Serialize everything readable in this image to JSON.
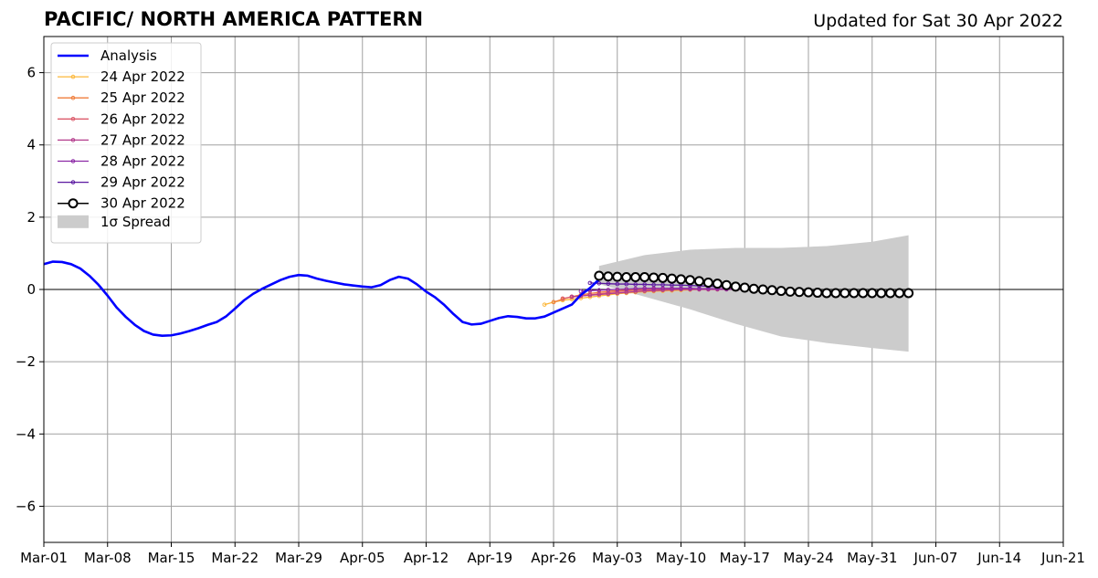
{
  "chart_data": {
    "type": "line",
    "title": "PACIFIC/ NORTH AMERICA PATTERN",
    "subtitle": "Updated for Sat 30 Apr 2022",
    "xlabel": "",
    "ylabel": "",
    "xlim": [
      "2022-03-01",
      "2022-06-21"
    ],
    "ylim": [
      -7,
      7
    ],
    "x_ticks": [
      "Mar-01",
      "Mar-08",
      "Mar-15",
      "Mar-22",
      "Mar-29",
      "Apr-05",
      "Apr-12",
      "Apr-19",
      "Apr-26",
      "May-03",
      "May-10",
      "May-17",
      "May-24",
      "May-31",
      "Jun-07",
      "Jun-14",
      "Jun-21"
    ],
    "y_ticks": [
      -6,
      -4,
      -2,
      0,
      2,
      4,
      6
    ],
    "grid": true,
    "legend_position": "upper-left",
    "colors": {
      "analysis": "#0000ff",
      "spread": "#cccccc",
      "forecast_30": "#000000"
    },
    "analysis": {
      "name": "Analysis",
      "start_date": "2022-03-01",
      "values": [
        0.7,
        0.77,
        0.76,
        0.7,
        0.58,
        0.38,
        0.13,
        -0.17,
        -0.5,
        -0.76,
        -0.98,
        -1.15,
        -1.25,
        -1.28,
        -1.27,
        -1.22,
        -1.15,
        -1.07,
        -0.98,
        -0.9,
        -0.75,
        -0.53,
        -0.3,
        -0.12,
        0.02,
        0.14,
        0.26,
        0.35,
        0.4,
        0.38,
        0.3,
        0.24,
        0.19,
        0.14,
        0.11,
        0.08,
        0.06,
        0.12,
        0.26,
        0.35,
        0.3,
        0.14,
        -0.06,
        -0.22,
        -0.43,
        -0.68,
        -0.9,
        -0.97,
        -0.95,
        -0.87,
        -0.79,
        -0.74,
        -0.76,
        -0.8,
        -0.8,
        -0.75,
        -0.64,
        -0.53,
        -0.42,
        -0.15,
        0.04,
        0.28
      ]
    },
    "forecasts": [
      {
        "name": "24 Apr 2022",
        "color": "#fcb73a",
        "start_date": "2022-04-25",
        "values": [
          -0.42,
          -0.35,
          -0.3,
          -0.27,
          -0.24,
          -0.21,
          -0.18,
          -0.15,
          -0.12,
          -0.1,
          -0.08,
          -0.06,
          -0.05,
          -0.04,
          -0.03,
          -0.02,
          -0.01,
          0.0,
          0.0,
          0.0
        ]
      },
      {
        "name": "25 Apr 2022",
        "color": "#f07e3c",
        "start_date": "2022-04-26",
        "values": [
          -0.35,
          -0.27,
          -0.2,
          -0.15,
          -0.11,
          -0.08,
          -0.05,
          -0.03,
          -0.02,
          -0.01,
          0.0,
          0.01,
          0.02,
          0.02,
          0.02,
          0.02,
          0.02,
          0.02,
          0.02,
          0.02
        ]
      },
      {
        "name": "26 Apr 2022",
        "color": "#dc5a6a",
        "start_date": "2022-04-27",
        "values": [
          -0.25,
          -0.21,
          -0.18,
          -0.15,
          -0.12,
          -0.09,
          -0.06,
          -0.04,
          -0.02,
          -0.01,
          0.0,
          0.01,
          0.01,
          0.02,
          0.02,
          0.02,
          0.02,
          0.02,
          0.02,
          0.02
        ]
      },
      {
        "name": "27 Apr 2022",
        "color": "#b43c8c",
        "start_date": "2022-04-28",
        "values": [
          -0.2,
          -0.18,
          -0.16,
          -0.14,
          -0.12,
          -0.1,
          -0.08,
          -0.06,
          -0.04,
          -0.03,
          -0.02,
          -0.01,
          0.0,
          0.0,
          0.0,
          0.0,
          0.0,
          0.0,
          0.0,
          0.0
        ]
      },
      {
        "name": "28 Apr 2022",
        "color": "#8c28a6",
        "start_date": "2022-04-29",
        "values": [
          -0.05,
          -0.03,
          -0.02,
          -0.01,
          0.0,
          0.01,
          0.02,
          0.03,
          0.03,
          0.03,
          0.03,
          0.03,
          0.03,
          0.02,
          0.02,
          0.02,
          0.01,
          0.01,
          0.01,
          0.01
        ]
      },
      {
        "name": "29 Apr 2022",
        "color": "#5a18a0",
        "start_date": "2022-04-30",
        "values": [
          0.18,
          0.17,
          0.16,
          0.15,
          0.15,
          0.14,
          0.14,
          0.13,
          0.13,
          0.12,
          0.12,
          0.11,
          0.1,
          0.09,
          0.08,
          0.07,
          0.06,
          0.05,
          0.04,
          0.03
        ]
      },
      {
        "name": "30 Apr 2022",
        "color": "#000000",
        "start_date": "2022-05-01",
        "values": [
          0.38,
          0.36,
          0.35,
          0.34,
          0.34,
          0.34,
          0.33,
          0.32,
          0.3,
          0.28,
          0.26,
          0.23,
          0.19,
          0.16,
          0.12,
          0.08,
          0.05,
          0.02,
          0.0,
          -0.02,
          -0.04,
          -0.06,
          -0.07,
          -0.08,
          -0.09,
          -0.1,
          -0.1,
          -0.1,
          -0.1,
          -0.1,
          -0.1,
          -0.1,
          -0.1,
          -0.1,
          -0.1
        ]
      }
    ],
    "spread": {
      "name": "1σ Spread",
      "start_date": "2022-05-01",
      "end_date": "2022-06-04",
      "upper": [
        [
          0,
          0.65
        ],
        [
          5,
          0.95
        ],
        [
          10,
          1.1
        ],
        [
          15,
          1.15
        ],
        [
          20,
          1.15
        ],
        [
          25,
          1.2
        ],
        [
          30,
          1.32
        ],
        [
          34,
          1.5
        ]
      ],
      "lower": [
        [
          0,
          0.15
        ],
        [
          5,
          -0.2
        ],
        [
          10,
          -0.55
        ],
        [
          15,
          -0.95
        ],
        [
          20,
          -1.3
        ],
        [
          25,
          -1.48
        ],
        [
          30,
          -1.62
        ],
        [
          34,
          -1.72
        ]
      ]
    },
    "legend": [
      "Analysis",
      "24 Apr 2022",
      "25 Apr 2022",
      "26 Apr 2022",
      "27 Apr 2022",
      "28 Apr 2022",
      "29 Apr 2022",
      "30 Apr 2022",
      "1σ Spread"
    ]
  }
}
